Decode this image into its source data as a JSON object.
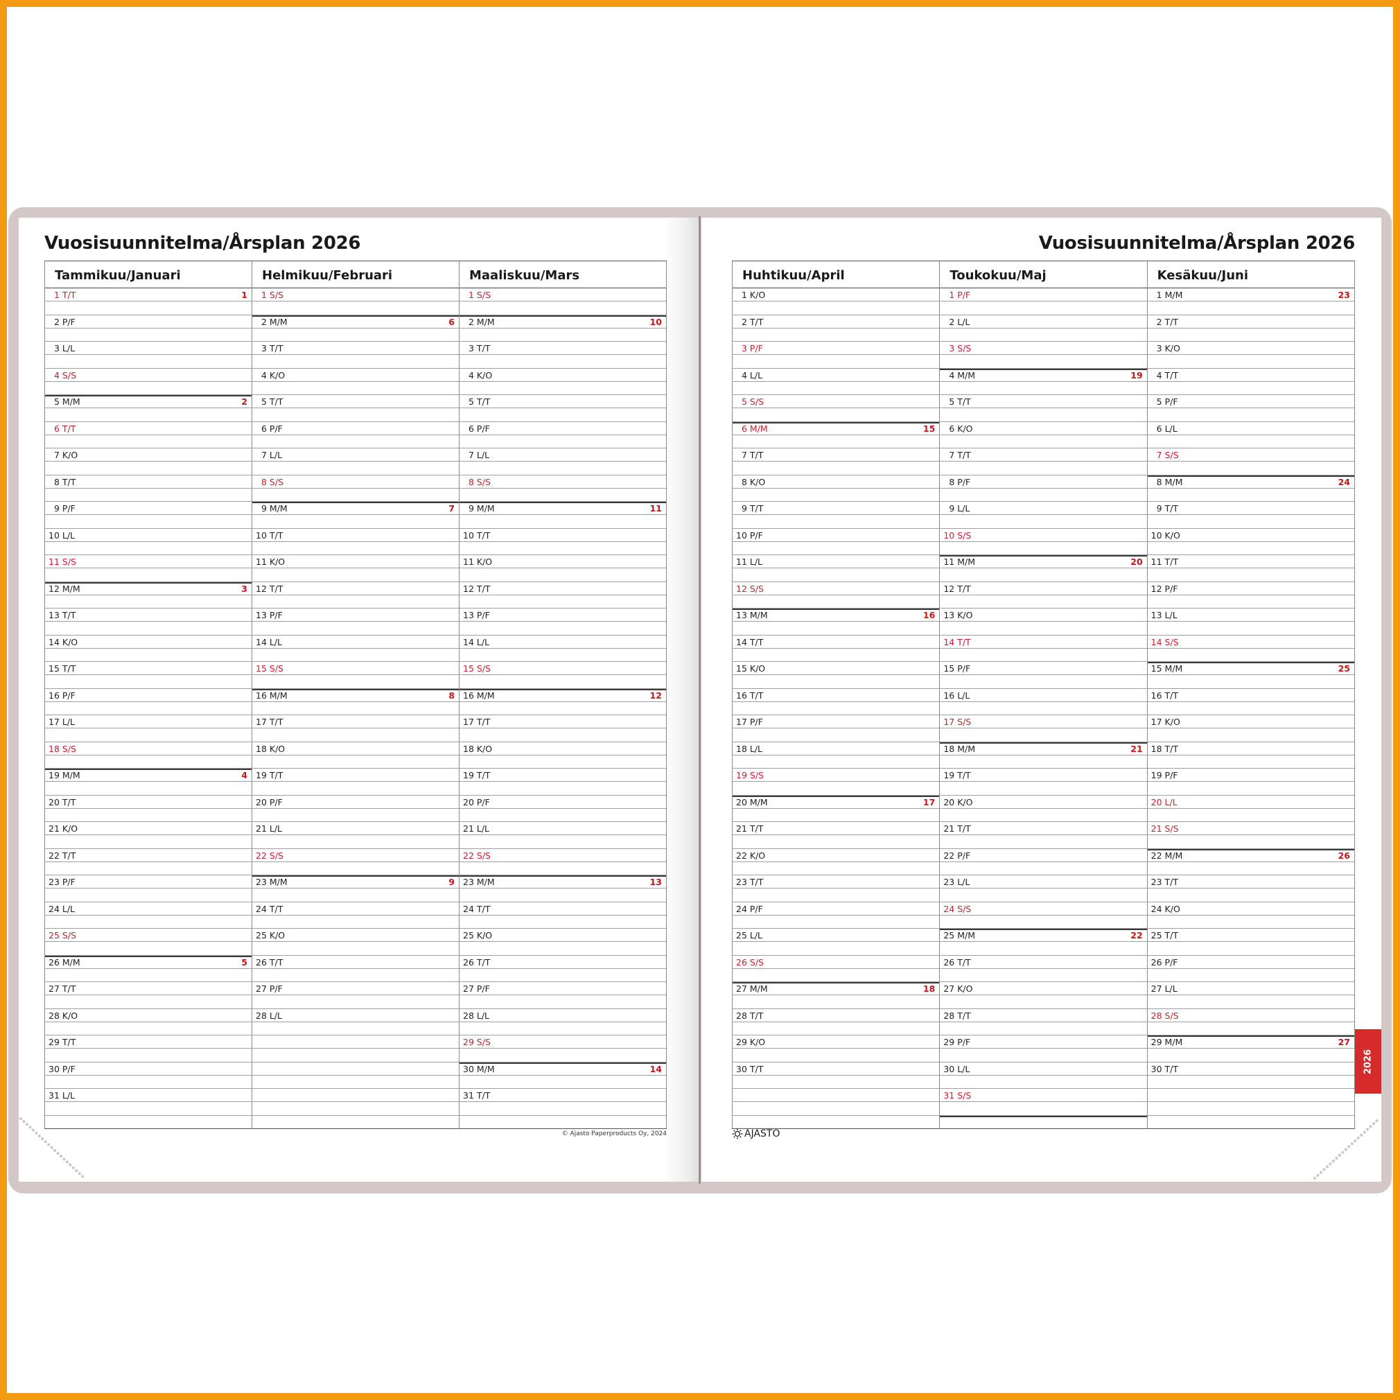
{
  "colors": {
    "frame": "#f39a12",
    "cover": "#d4c7c8",
    "red": "#c8202f",
    "tab": "#d62b2b"
  },
  "left_page": {
    "title": "Vuosisuunnitelma/Årsplan 2026",
    "copyright": "© Ajasto Paperproducts Oy, 2024",
    "months": [
      {
        "name": "Tammikuu/Januari",
        "days": [
          "1 T/T",
          "2 P/F",
          "3 L/L",
          "4 S/S",
          "5 M/M",
          "6 T/T",
          "7 K/O",
          "8 T/T",
          "9 P/F",
          "10 L/L",
          "11 S/S",
          "12 M/M",
          "13 T/T",
          "14 K/O",
          "15 T/T",
          "16 P/F",
          "17 L/L",
          "18 S/S",
          "19 M/M",
          "20 T/T",
          "21 K/O",
          "22 T/T",
          "23 P/F",
          "24 L/L",
          "25 S/S",
          "26 M/M",
          "27 T/T",
          "28 K/O",
          "29 T/T",
          "30 P/F",
          "31 L/L"
        ],
        "red_days": [
          1,
          4,
          6,
          11,
          18,
          25
        ],
        "weeks": {
          "1": "1",
          "5": "2",
          "12": "3",
          "19": "4",
          "26": "5"
        }
      },
      {
        "name": "Helmikuu/Februari",
        "days": [
          "1 S/S",
          "2 M/M",
          "3 T/T",
          "4 K/O",
          "5 T/T",
          "6 P/F",
          "7 L/L",
          "8 S/S",
          "9 M/M",
          "10 T/T",
          "11 K/O",
          "12 T/T",
          "13 P/F",
          "14 L/L",
          "15 S/S",
          "16 M/M",
          "17 T/T",
          "18 K/O",
          "19 T/T",
          "20 P/F",
          "21 L/L",
          "22 S/S",
          "23 M/M",
          "24 T/T",
          "25 K/O",
          "26 T/T",
          "27 P/F",
          "28 L/L"
        ],
        "red_days": [
          1,
          8,
          15,
          22
        ],
        "weeks": {
          "2": "6",
          "9": "7",
          "16": "8",
          "23": "9"
        }
      },
      {
        "name": "Maaliskuu/Mars",
        "days": [
          "1 S/S",
          "2 M/M",
          "3 T/T",
          "4 K/O",
          "5 T/T",
          "6 P/F",
          "7 L/L",
          "8 S/S",
          "9 M/M",
          "10 T/T",
          "11 K/O",
          "12 T/T",
          "13 P/F",
          "14 L/L",
          "15 S/S",
          "16 M/M",
          "17 T/T",
          "18 K/O",
          "19 T/T",
          "20 P/F",
          "21 L/L",
          "22 S/S",
          "23 M/M",
          "24 T/T",
          "25 K/O",
          "26 T/T",
          "27 P/F",
          "28 L/L",
          "29 S/S",
          "30 M/M",
          "31 T/T"
        ],
        "red_days": [
          1,
          8,
          15,
          22,
          29
        ],
        "weeks": {
          "2": "10",
          "9": "11",
          "16": "12",
          "23": "13",
          "30": "14"
        }
      }
    ]
  },
  "right_page": {
    "title": "Vuosisuunnitelma/Årsplan 2026",
    "logo": "AJASTO",
    "year_tab": "2026",
    "months": [
      {
        "name": "Huhtikuu/April",
        "days": [
          "1 K/O",
          "2 T/T",
          "3 P/F",
          "4 L/L",
          "5 S/S",
          "6 M/M",
          "7 T/T",
          "8 K/O",
          "9 T/T",
          "10 P/F",
          "11 L/L",
          "12 S/S",
          "13 M/M",
          "14 T/T",
          "15 K/O",
          "16 T/T",
          "17 P/F",
          "18 L/L",
          "19 S/S",
          "20 M/M",
          "21 T/T",
          "22 K/O",
          "23 T/T",
          "24 P/F",
          "25 L/L",
          "26 S/S",
          "27 M/M",
          "28 T/T",
          "29 K/O",
          "30 T/T"
        ],
        "red_days": [
          3,
          5,
          6,
          12,
          19,
          26
        ],
        "weeks": {
          "6": "15",
          "13": "16",
          "20": "17",
          "27": "18"
        }
      },
      {
        "name": "Toukokuu/Maj",
        "days": [
          "1 P/F",
          "2 L/L",
          "3 S/S",
          "4 M/M",
          "5 T/T",
          "6 K/O",
          "7 T/T",
          "8 P/F",
          "9 L/L",
          "10 S/S",
          "11 M/M",
          "12 T/T",
          "13 K/O",
          "14 T/T",
          "15 P/F",
          "16 L/L",
          "17 S/S",
          "18 M/M",
          "19 T/T",
          "20 K/O",
          "21 T/T",
          "22 P/F",
          "23 L/L",
          "24 S/S",
          "25 M/M",
          "26 T/T",
          "27 K/O",
          "28 T/T",
          "29 P/F",
          "30 L/L",
          "31 S/S"
        ],
        "red_days": [
          1,
          3,
          10,
          14,
          17,
          24,
          31
        ],
        "weeks": {
          "4": "19",
          "11": "20",
          "18": "21",
          "25": "22"
        }
      },
      {
        "name": "Kesäkuu/Juni",
        "days": [
          "1 M/M",
          "2 T/T",
          "3 K/O",
          "4 T/T",
          "5 P/F",
          "6 L/L",
          "7 S/S",
          "8 M/M",
          "9 T/T",
          "10 K/O",
          "11 T/T",
          "12 P/F",
          "13 L/L",
          "14 S/S",
          "15 M/M",
          "16 T/T",
          "17 K/O",
          "18 T/T",
          "19 P/F",
          "20 L/L",
          "21 S/S",
          "22 M/M",
          "23 T/T",
          "24 K/O",
          "25 T/T",
          "26 P/F",
          "27 L/L",
          "28 S/S",
          "29 M/M",
          "30 T/T"
        ],
        "red_days": [
          7,
          14,
          20,
          21,
          28
        ],
        "weeks": {
          "1": "23",
          "8": "24",
          "15": "25",
          "22": "26",
          "29": "27"
        }
      }
    ]
  }
}
